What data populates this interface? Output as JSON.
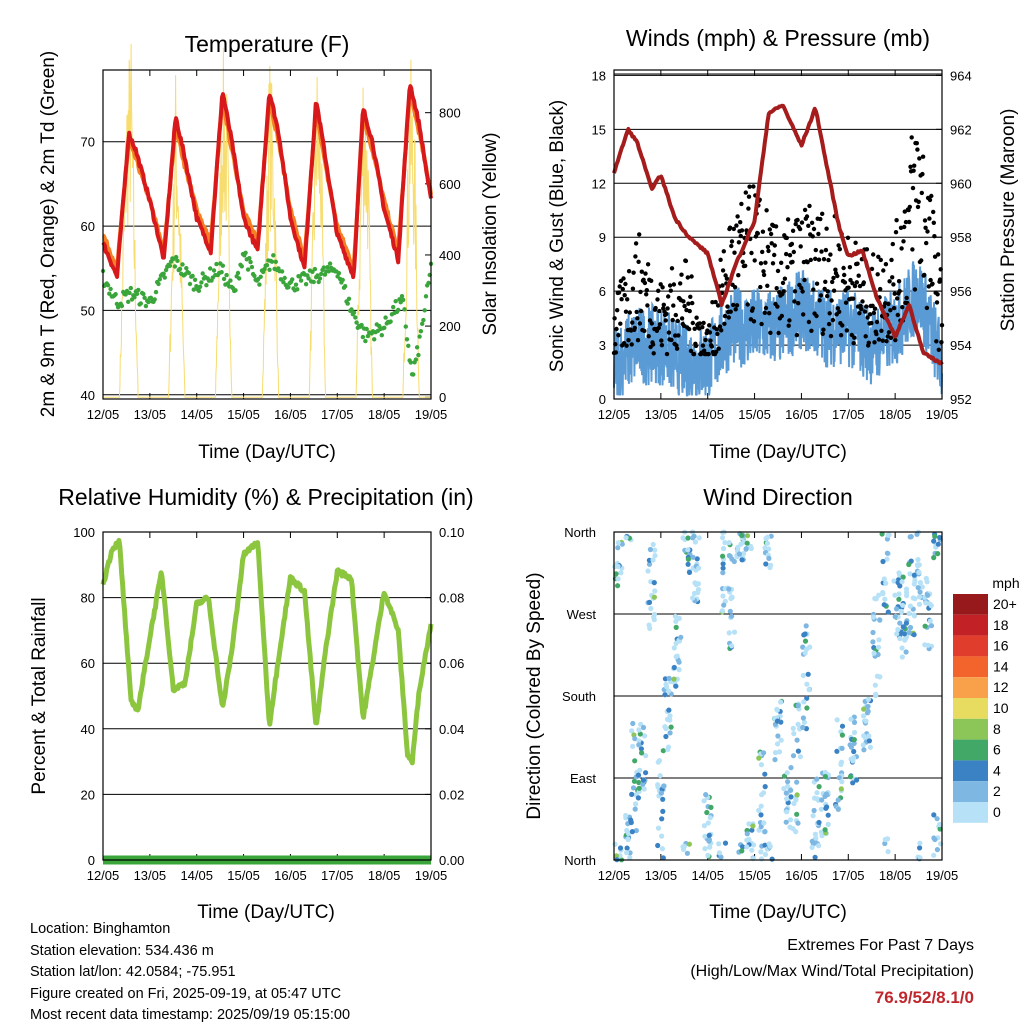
{
  "colors": {
    "temp_2m": "#d7191c",
    "temp_9m": "#f57f22",
    "dewpoint": "#3aa53a",
    "insolation": "#f7dc6f",
    "wind": "#5a9bd5",
    "gust": "#000000",
    "pressure": "#a51c1c",
    "rh": "#8cc63f",
    "rain": "#3aa53a",
    "extremes": "#c0272d"
  },
  "time_ticks": [
    "12/05",
    "13/05",
    "14/05",
    "15/05",
    "16/05",
    "17/05",
    "18/05",
    "19/05"
  ],
  "time_label": "Time (Day/UTC)",
  "charts": {
    "temperature": {
      "title": "Temperature (F)",
      "ylabel": "2m & 9m T (Red, Orange) & 2m Td (Green)",
      "y2label": "Solar Insolation (Yellow)"
    },
    "wind": {
      "title": "Winds (mph) & Pressure (mb)",
      "ylabel": "Sonic Wind & Gust (Blue, Black)",
      "y2label": "Station Pressure (Maroon)"
    },
    "rh": {
      "title": "Relative Humidity (%) & Precipitation (in)",
      "ylabel": "Percent & Total Rainfall"
    },
    "direction": {
      "title": "Wind Direction",
      "ylabel": "Direction (Colored By Speed)",
      "legend_title": "mph"
    }
  },
  "chart_data": [
    {
      "type": "line",
      "id": "temperature",
      "x_range": [
        0,
        7
      ],
      "ylim": [
        39.5,
        78.5
      ],
      "y_ticks": [
        "40",
        "50",
        "60",
        "70"
      ],
      "y2lim": [
        -5,
        920
      ],
      "y2_ticks": [
        "0",
        "200",
        "400",
        "600",
        "800"
      ],
      "series": [
        {
          "name": "2m T",
          "x": [
            0,
            0.3,
            0.55,
            0.7,
            1.0,
            1.3,
            1.55,
            1.75,
            2.0,
            2.3,
            2.55,
            2.75,
            3.0,
            3.3,
            3.55,
            3.75,
            4.0,
            4.3,
            4.55,
            4.75,
            5.0,
            5.35,
            5.55,
            5.75,
            6.0,
            6.3,
            6.55,
            6.75,
            7.0
          ],
          "y": [
            58,
            54,
            71,
            69,
            63,
            56,
            73,
            68,
            61,
            57,
            76,
            70,
            61,
            57,
            76,
            71,
            61,
            55,
            75,
            68,
            59,
            54,
            74,
            70,
            62,
            56,
            77,
            72,
            63
          ]
        },
        {
          "name": "9m T",
          "x": [
            0,
            0.3,
            0.55,
            0.7,
            1.0,
            1.3,
            1.55,
            1.75,
            2.0,
            2.3,
            2.55,
            2.75,
            3.0,
            3.3,
            3.55,
            3.75,
            4.0,
            4.3,
            4.55,
            4.75,
            5.0,
            5.35,
            5.55,
            5.75,
            6.0,
            6.3,
            6.55,
            6.75,
            7.0
          ],
          "y": [
            59,
            55,
            70,
            68,
            63,
            57,
            72,
            67,
            62,
            58,
            75,
            69,
            62,
            58,
            75,
            70,
            62,
            56,
            74,
            67,
            60,
            55,
            73,
            69,
            63,
            57,
            76,
            71,
            64
          ]
        },
        {
          "name": "2m Td",
          "x": [
            0,
            0.3,
            0.6,
            1.0,
            1.5,
            2.0,
            2.5,
            2.8,
            3.0,
            3.3,
            3.6,
            4.0,
            4.5,
            5.0,
            5.3,
            5.6,
            6.0,
            6.2,
            6.4,
            6.6,
            6.75,
            7.0
          ],
          "y": [
            54,
            51,
            52,
            51,
            56,
            53,
            55,
            52,
            57,
            53,
            56,
            53,
            54,
            55,
            50,
            47,
            48,
            50,
            51,
            42,
            46,
            55
          ]
        },
        {
          "name": "Solar Insolation",
          "x": [
            0,
            0.35,
            0.5,
            0.6,
            0.75,
            1.0,
            1.4,
            1.55,
            1.6,
            1.75,
            2.0,
            2.4,
            2.55,
            2.65,
            2.75,
            3.0,
            3.4,
            3.55,
            3.65,
            3.75,
            4.0,
            4.4,
            4.55,
            4.65,
            4.75,
            5.0,
            5.4,
            5.55,
            5.65,
            5.75,
            6.0,
            6.4,
            6.55,
            6.65,
            6.75,
            7.0
          ],
          "y": [
            0,
            0,
            800,
            900,
            0,
            0,
            0,
            820,
            700,
            0,
            0,
            0,
            880,
            760,
            0,
            0,
            0,
            860,
            700,
            0,
            0,
            0,
            860,
            720,
            0,
            0,
            0,
            870,
            700,
            0,
            0,
            0,
            860,
            700,
            0,
            0
          ]
        }
      ]
    },
    {
      "type": "scatter",
      "id": "wind",
      "x_range": [
        0,
        7
      ],
      "ylim": [
        0,
        18.3
      ],
      "y_ticks": [
        "0",
        "3",
        "6",
        "9",
        "12",
        "15",
        "18"
      ],
      "y2lim": [
        952,
        964.2
      ],
      "y2_ticks": [
        "952",
        "954",
        "956",
        "958",
        "960",
        "962",
        "964"
      ],
      "series": [
        {
          "name": "Sonic Wind",
          "x": [
            0,
            0.5,
            1.0,
            1.5,
            2.0,
            2.5,
            3.0,
            3.5,
            4.0,
            4.5,
            5.0,
            5.5,
            6.0,
            6.5,
            7.0
          ],
          "y": [
            2,
            3,
            3,
            2,
            2,
            4,
            4,
            4,
            5,
            4,
            4,
            3,
            4,
            6,
            2
          ]
        },
        {
          "name": "Gust",
          "x": [
            0,
            0.5,
            1.0,
            1.5,
            2.0,
            2.5,
            3.0,
            3.5,
            4.0,
            4.5,
            5.0,
            5.5,
            6.0,
            6.5,
            7.0
          ],
          "y": [
            4,
            7,
            5,
            6,
            3,
            8,
            9,
            7,
            8,
            8,
            7,
            6,
            7,
            13,
            5
          ]
        },
        {
          "name": "Station Pressure",
          "x": [
            0,
            0.3,
            0.5,
            0.8,
            1.0,
            1.3,
            1.6,
            2.0,
            2.3,
            2.6,
            3.0,
            3.3,
            3.6,
            4.0,
            4.3,
            4.5,
            4.8,
            5.0,
            5.3,
            5.6,
            6.0,
            6.3,
            6.6,
            6.8,
            7.0
          ],
          "y": [
            960.4,
            962,
            961.5,
            959.8,
            960.3,
            958.7,
            958,
            957.4,
            955.5,
            957,
            958.6,
            962.6,
            962.9,
            961.4,
            962.8,
            961,
            958.4,
            957.3,
            957.5,
            955.8,
            954.3,
            955.5,
            953.7,
            953.5,
            953.3
          ]
        }
      ]
    },
    {
      "type": "line",
      "id": "rh",
      "x_range": [
        0,
        7
      ],
      "ylim": [
        0,
        100
      ],
      "y_ticks": [
        "0",
        "20",
        "40",
        "60",
        "80",
        "100"
      ],
      "y2lim": [
        0,
        0.1
      ],
      "y2_ticks": [
        "0.00",
        "0.02",
        "0.04",
        "0.06",
        "0.08",
        "0.10"
      ],
      "series": [
        {
          "name": "Relative Humidity",
          "x": [
            0,
            0.2,
            0.35,
            0.6,
            0.75,
            1.0,
            1.25,
            1.5,
            1.75,
            2.0,
            2.25,
            2.55,
            2.75,
            3.0,
            3.3,
            3.55,
            3.75,
            4.0,
            4.3,
            4.55,
            4.75,
            5.0,
            5.3,
            5.55,
            5.75,
            6.0,
            6.3,
            6.5,
            6.6,
            6.75,
            7.0
          ],
          "y": [
            84,
            95,
            97,
            48,
            46,
            68,
            88,
            52,
            54,
            78,
            80,
            46,
            64,
            93,
            97,
            41,
            62,
            86,
            82,
            40,
            64,
            88,
            86,
            43,
            60,
            82,
            70,
            32,
            30,
            52,
            72
          ]
        },
        {
          "name": "Total Rainfall",
          "x": [
            0,
            7
          ],
          "y": [
            0,
            0
          ]
        }
      ]
    },
    {
      "type": "scatter",
      "id": "direction",
      "x_range": [
        0,
        7
      ],
      "y_ticks": [
        "North",
        "East",
        "South",
        "West",
        "North"
      ],
      "legend": {
        "title": "mph",
        "labels": [
          "20+",
          "18",
          "16",
          "14",
          "12",
          "10",
          "8",
          "6",
          "4",
          "2",
          "0"
        ],
        "colors": [
          "#98191c",
          "#c22126",
          "#e13d2d",
          "#f2642c",
          "#f8a14a",
          "#e8dc60",
          "#8cc659",
          "#42a868",
          "#3a82c4",
          "#7db7e2",
          "#b6e1f6"
        ]
      }
    }
  ],
  "footer": {
    "location": "Location: Binghamton",
    "elevation": "Station elevation: 534.436 m",
    "latlon": "Station lat/lon: 42.0584; -75.951",
    "created": "Figure created on Fri, 2025-09-19, at 05:47 UTC",
    "recent": "Most recent data timestamp: 2025/09/19 05:15:00"
  },
  "extremes": {
    "line1": "Extremes For Past 7 Days",
    "line2": "(High/Low/Max Wind/Total Precipitation)",
    "values": "76.9/52/8.1/0"
  }
}
